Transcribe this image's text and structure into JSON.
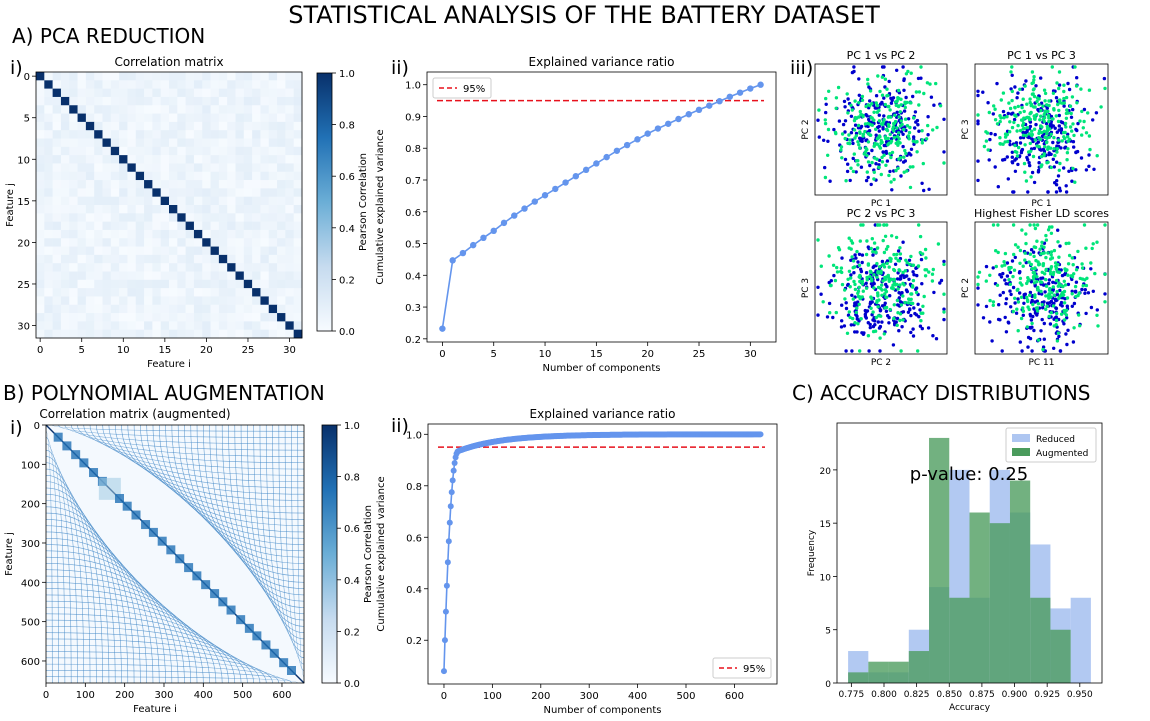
{
  "figure": {
    "title": "STATISTICAL ANALYSIS OF THE BATTERY DATASET",
    "sections": {
      "a": "A) PCA REDUCTION",
      "b": "B) POLYNOMIAL AUGMENTATION",
      "c": "C) ACCURACY DISTRIBUTIONS"
    },
    "panel_labels": {
      "i_a": "i)",
      "ii_a": "ii)",
      "iii_a": "iii)",
      "i_b": "i)",
      "ii_b": "ii)"
    }
  },
  "colors": {
    "heat_low": "#f7fbff",
    "heat_high": "#08306b",
    "variance": "#6495ed",
    "threshold": "#e8111c",
    "class_a": "#0000cd",
    "class_b": "#00e57a",
    "reduced": "#aec6f1",
    "augmented": "#4a9b5c"
  },
  "chart_data": [
    {
      "id": "corr_a",
      "type": "heatmap",
      "title": "Correlation matrix",
      "xlabel": "Feature i",
      "ylabel": "Feature j",
      "size": 32,
      "diagonal": 1.0,
      "off_diagonal_max": 0.1,
      "xticks": [
        0,
        5,
        10,
        15,
        20,
        25,
        30
      ],
      "yticks": [
        0,
        5,
        10,
        15,
        20,
        25,
        30
      ],
      "colorbar_label": "Pearson Correlation",
      "colorbar_ticks": [
        "0.0",
        "0.2",
        "0.4",
        "0.6",
        "0.8",
        "1.0"
      ]
    },
    {
      "id": "var_a",
      "type": "line",
      "title": "Explained variance ratio",
      "xlabel": "Number of components",
      "ylabel": "Cumulative explained variance",
      "x": [
        0,
        1,
        2,
        3,
        4,
        5,
        6,
        7,
        8,
        9,
        10,
        11,
        12,
        13,
        14,
        15,
        16,
        17,
        18,
        19,
        20,
        21,
        22,
        23,
        24,
        25,
        26,
        27,
        28,
        29,
        30,
        31
      ],
      "y": [
        0.232,
        0.447,
        0.47,
        0.495,
        0.518,
        0.54,
        0.565,
        0.588,
        0.61,
        0.632,
        0.652,
        0.672,
        0.692,
        0.712,
        0.732,
        0.752,
        0.772,
        0.792,
        0.81,
        0.828,
        0.846,
        0.862,
        0.877,
        0.892,
        0.907,
        0.921,
        0.934,
        0.948,
        0.962,
        0.975,
        0.988,
        1.0
      ],
      "threshold": 0.95,
      "legend": "95%",
      "xticks": [
        0,
        5,
        10,
        15,
        20,
        25,
        30
      ],
      "yticks": [
        "0.2",
        "0.3",
        "0.4",
        "0.5",
        "0.6",
        "0.7",
        "0.8",
        "0.9",
        "1.0"
      ],
      "xlim": [
        -1.5,
        32.5
      ],
      "ylim": [
        0.19,
        1.04
      ]
    },
    {
      "id": "scatter_a",
      "type": "scatter",
      "subplots": [
        {
          "title": "PC 1 vs PC 2",
          "xlabel": "PC 1",
          "ylabel": "PC 2"
        },
        {
          "title": "PC 1 vs PC 3",
          "xlabel": "PC 1",
          "ylabel": "PC 3"
        },
        {
          "title": "PC 2 vs PC 3",
          "xlabel": "PC 2",
          "ylabel": "PC 3"
        },
        {
          "title": "Highest Fisher LD scores",
          "xlabel": "PC 11",
          "ylabel": "PC 2"
        }
      ]
    },
    {
      "id": "corr_b",
      "type": "heatmap",
      "title": "Correlation matrix (augmented)",
      "xlabel": "Feature i",
      "ylabel": "Feature j",
      "size": 656,
      "xticks": [
        0,
        100,
        200,
        300,
        400,
        500,
        600
      ],
      "yticks": [
        0,
        100,
        200,
        300,
        400,
        500,
        600
      ],
      "colorbar_label": "Pearson Correlation",
      "colorbar_ticks": [
        "0.0",
        "0.2",
        "0.4",
        "0.6",
        "0.8",
        "1.0"
      ]
    },
    {
      "id": "var_b",
      "type": "line",
      "title": "Explained variance ratio",
      "xlabel": "Number of components",
      "ylabel": "Cumulative explained variance",
      "n_components": 656,
      "threshold": 0.95,
      "legend": "95%",
      "xticks": [
        0,
        100,
        200,
        300,
        400,
        500,
        600
      ],
      "yticks": [
        "0.2",
        "0.4",
        "0.6",
        "0.8",
        "1.0"
      ],
      "xlim": [
        -33,
        688
      ],
      "ylim": [
        0.03,
        1.04
      ]
    },
    {
      "id": "hist_c",
      "type": "bar",
      "xlabel": "Accuracy",
      "ylabel": "Frequency",
      "annotation": "p-value: 0.25",
      "bin_edges": [
        0.7725,
        0.788,
        0.8035,
        0.819,
        0.8345,
        0.85,
        0.8655,
        0.881,
        0.8965,
        0.912,
        0.9275,
        0.943,
        0.9585
      ],
      "series": [
        {
          "name": "Reduced",
          "values": [
            3,
            1,
            1,
            5,
            9,
            20,
            8,
            20,
            16,
            13,
            7,
            8
          ]
        },
        {
          "name": "Augmented",
          "values": [
            1,
            2,
            2,
            3,
            23,
            8,
            16,
            15,
            19,
            8,
            5,
            0
          ]
        }
      ],
      "xticks": [
        "0.775",
        "0.800",
        "0.825",
        "0.850",
        "0.875",
        "0.900",
        "0.925",
        "0.950"
      ],
      "yticks": [
        0,
        5,
        10,
        15,
        20
      ],
      "xlim": [
        0.764,
        0.967
      ],
      "ylim": [
        0,
        24.4
      ],
      "legend_position": "upper right"
    }
  ]
}
